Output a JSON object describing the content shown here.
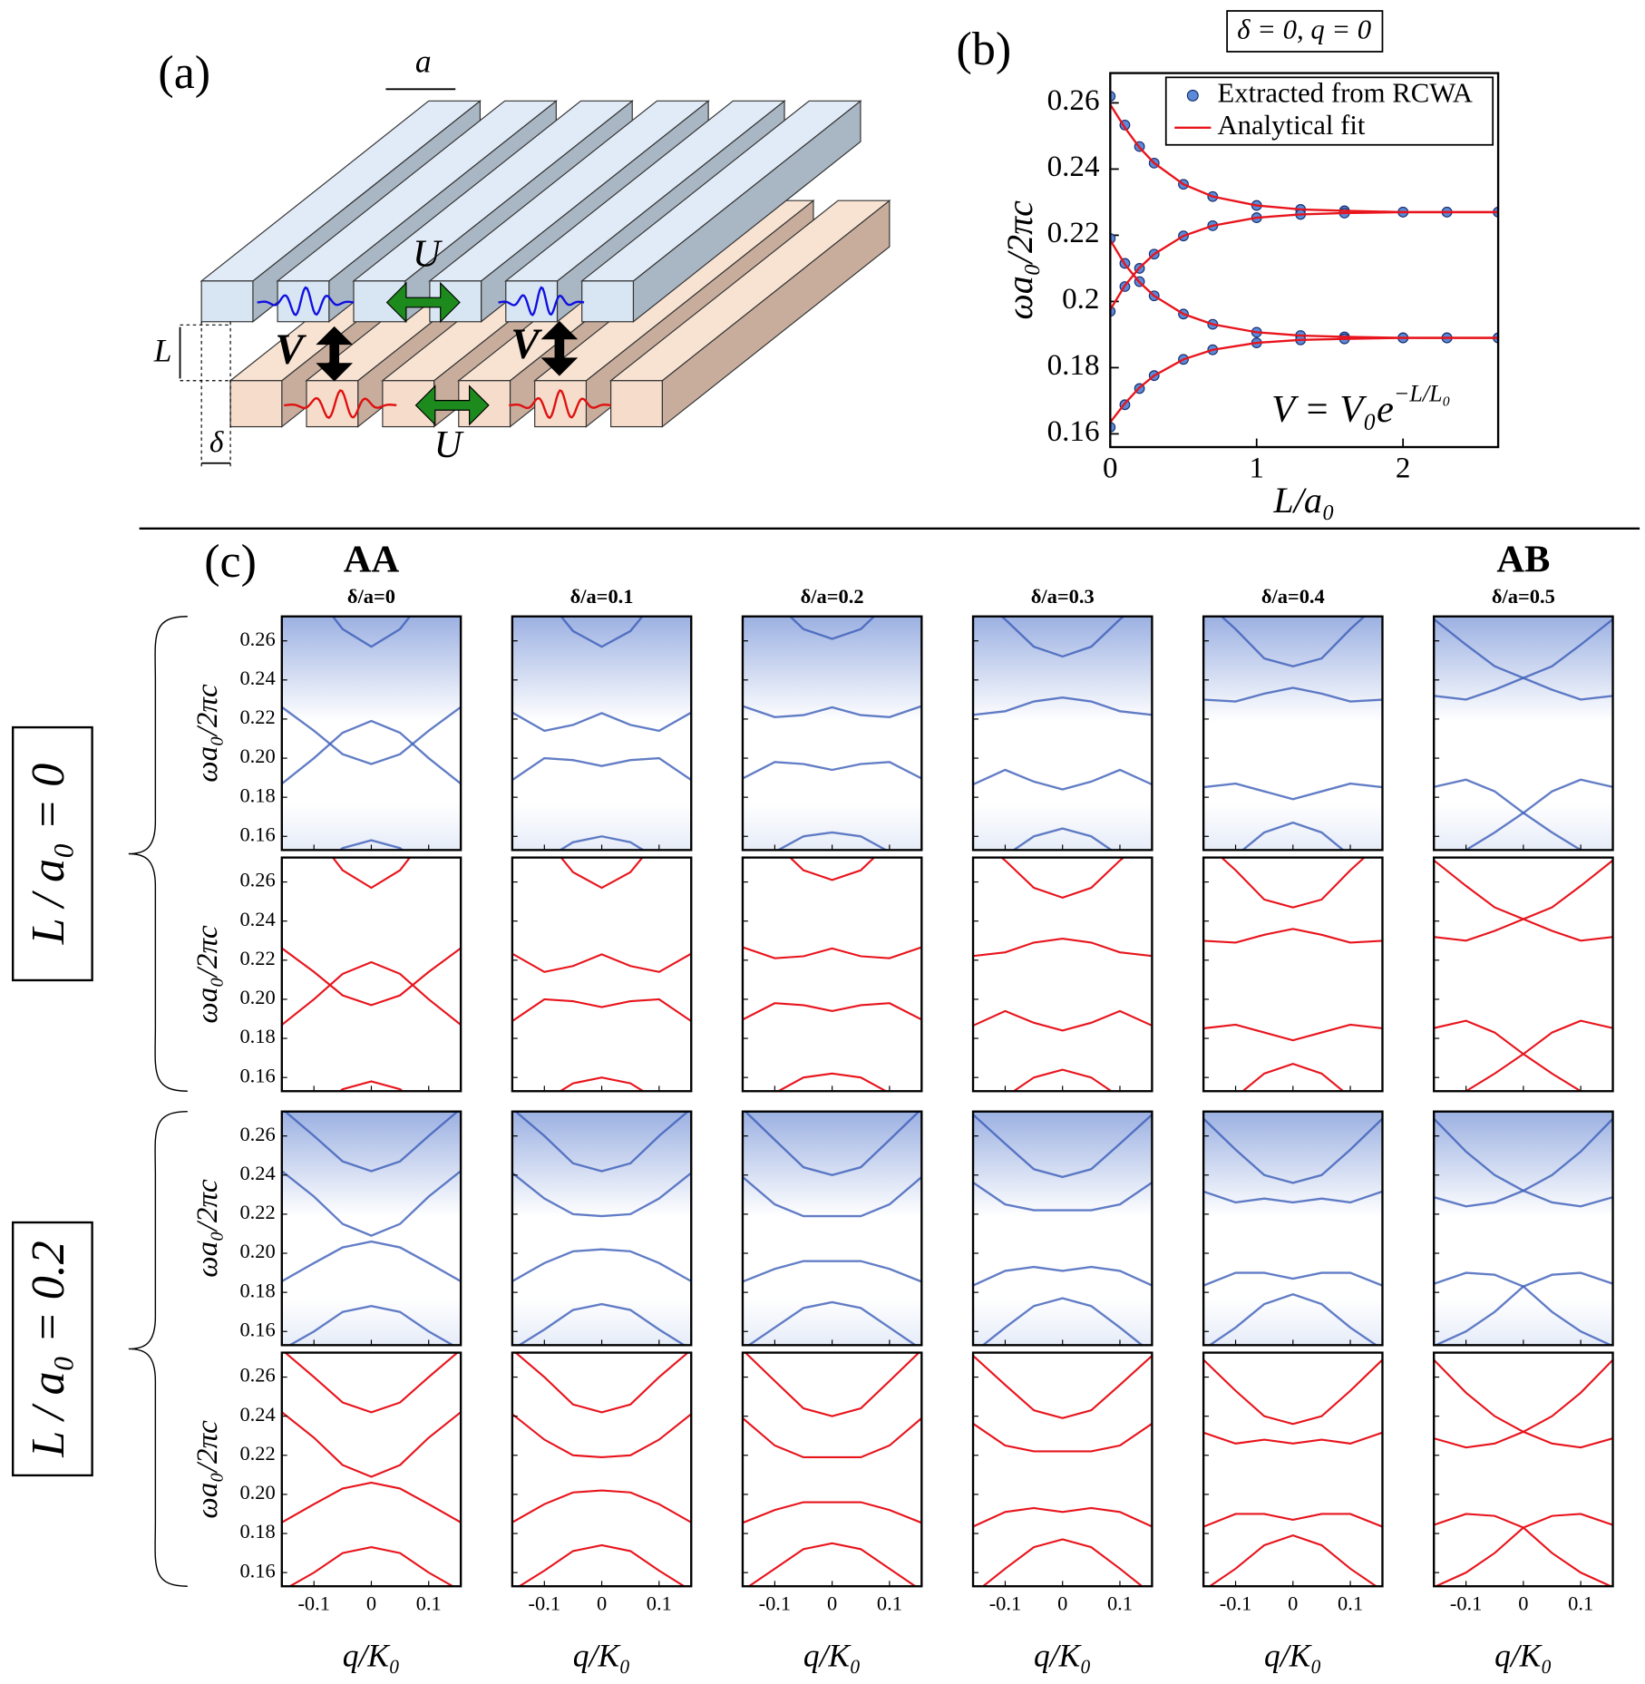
{
  "panel_a": {
    "panel_label": "(a)",
    "period_label": "a",
    "coupling_labels": [
      "U",
      "U",
      "V",
      "V"
    ],
    "separation_label": "L",
    "shift_label": "δ"
  },
  "chart_data": [
    {
      "type": "scatter-line",
      "panel_label": "(b)",
      "subtitle": "δ = 0, q = 0",
      "x_label": "L/a₀",
      "y_label": "ωa₀/2πc",
      "equation": {
        "base": "V = V₀e",
        "exponent": "−L/L₀"
      },
      "xlim": [
        0,
        2.65
      ],
      "ylim": [
        0.156,
        0.269
      ],
      "xticks": [
        0,
        1,
        2
      ],
      "yticks": [
        0.16,
        0.18,
        0.2,
        0.22,
        0.24,
        0.26
      ],
      "legend": "upper right",
      "x": [
        0,
        0.1,
        0.2,
        0.3,
        0.5,
        0.7,
        1.0,
        1.3,
        1.6,
        2.0,
        2.3,
        2.65
      ],
      "series": [
        {
          "name": "Extracted from RCWA",
          "color": "#5b8ad8",
          "marker": "dot",
          "branches": [
            [
              0.262,
              0.2533,
              0.2468,
              0.2418,
              0.2354,
              0.2317,
              0.229,
              0.2278,
              0.2274,
              0.227,
              0.227,
              0.227
            ],
            [
              0.197,
              0.2045,
              0.21,
              0.2143,
              0.2198,
              0.2229,
              0.2253,
              0.2263,
              0.2267,
              0.227,
              0.227,
              0.227
            ],
            [
              0.219,
              0.2115,
              0.206,
              0.2017,
              0.1962,
              0.1931,
              0.1907,
              0.1897,
              0.1893,
              0.189,
              0.189,
              0.189
            ],
            [
              0.162,
              0.1688,
              0.1737,
              0.1776,
              0.1825,
              0.1854,
              0.1875,
              0.1884,
              0.1887,
              0.189,
              0.189,
              0.189
            ]
          ]
        },
        {
          "name": "Analytical fit",
          "color": "#e8141c",
          "branches": [
            [
              0.2595,
              0.2525,
              0.2465,
              0.2418,
              0.2354,
              0.2317,
              0.229,
              0.2278,
              0.2274,
              0.227,
              0.227,
              0.227
            ],
            [
              0.1975,
              0.2048,
              0.2102,
              0.2143,
              0.2198,
              0.2229,
              0.2253,
              0.2263,
              0.2267,
              0.227,
              0.227,
              0.227
            ],
            [
              0.2185,
              0.2112,
              0.2058,
              0.2017,
              0.1962,
              0.1931,
              0.1907,
              0.1897,
              0.1893,
              0.189,
              0.189,
              0.189
            ],
            [
              0.1635,
              0.1692,
              0.174,
              0.1776,
              0.1825,
              0.1854,
              0.1875,
              0.1884,
              0.1887,
              0.189,
              0.189,
              0.189
            ]
          ]
        }
      ]
    },
    {
      "type": "band-grid",
      "panel_label": "(c)",
      "stacking_labels": [
        "AA",
        "AB"
      ],
      "column_titles": [
        "δ/a=0",
        "δ/a=0.1",
        "δ/a=0.2",
        "δ/a=0.3",
        "δ/a=0.4",
        "δ/a=0.5"
      ],
      "x_label": "q/K₀",
      "y_label": "ωa₀/2πc",
      "rcwa_color": "#3b5cb8",
      "fit_color": "#e8141c",
      "xlim": [
        -0.156,
        0.156
      ],
      "ylim": [
        0.153,
        0.2725
      ],
      "xticks": [
        -0.1,
        0,
        0.1
      ],
      "yticks": [
        0.16,
        0.18,
        {
          "value": 0.2,
          "label": "0.20"
        },
        0.22,
        0.24,
        0.26
      ],
      "x": [
        -0.16,
        -0.1,
        -0.05,
        0,
        0.05,
        0.1,
        0.16
      ],
      "rows": [
        {
          "label": "L / a₀ = 0",
          "columns": [
            {
              "bands": [
                [
                  0.3,
                  0.285,
                  0.266,
                  0.257,
                  0.266,
                  0.285,
                  0.3
                ],
                [
                  0.186,
                  0.2,
                  0.213,
                  0.219,
                  0.213,
                  0.2,
                  0.186
                ],
                [
                  0.227,
                  0.214,
                  0.202,
                  0.197,
                  0.202,
                  0.214,
                  0.227
                ],
                [
                  0.13,
                  0.142,
                  0.154,
                  0.158,
                  0.154,
                  0.142,
                  0.13
                ]
              ]
            },
            {
              "bands": [
                [
                  0.3,
                  0.283,
                  0.265,
                  0.257,
                  0.265,
                  0.283,
                  0.3
                ],
                [
                  0.224,
                  0.214,
                  0.217,
                  0.223,
                  0.217,
                  0.214,
                  0.224
                ],
                [
                  0.188,
                  0.2,
                  0.199,
                  0.196,
                  0.199,
                  0.2,
                  0.188
                ],
                [
                  0.135,
                  0.148,
                  0.157,
                  0.16,
                  0.157,
                  0.148,
                  0.135
                ]
              ]
            },
            {
              "bands": [
                [
                  0.295,
                  0.28,
                  0.266,
                  0.261,
                  0.266,
                  0.28,
                  0.295
                ],
                [
                  0.227,
                  0.221,
                  0.222,
                  0.226,
                  0.222,
                  0.221,
                  0.227
                ],
                [
                  0.189,
                  0.198,
                  0.197,
                  0.194,
                  0.197,
                  0.198,
                  0.189
                ],
                [
                  0.14,
                  0.152,
                  0.16,
                  0.162,
                  0.16,
                  0.152,
                  0.14
                ]
              ]
            },
            {
              "bands": [
                [
                  0.285,
                  0.271,
                  0.257,
                  0.252,
                  0.257,
                  0.271,
                  0.285
                ],
                [
                  0.222,
                  0.224,
                  0.229,
                  0.231,
                  0.229,
                  0.224,
                  0.222
                ],
                [
                  0.186,
                  0.194,
                  0.188,
                  0.184,
                  0.188,
                  0.194,
                  0.186
                ],
                [
                  0.14,
                  0.15,
                  0.16,
                  0.164,
                  0.16,
                  0.15,
                  0.14
                ]
              ]
            },
            {
              "bands": [
                [
                  0.282,
                  0.266,
                  0.251,
                  0.247,
                  0.251,
                  0.266,
                  0.282
                ],
                [
                  0.23,
                  0.229,
                  0.233,
                  0.236,
                  0.233,
                  0.229,
                  0.23
                ],
                [
                  0.185,
                  0.187,
                  0.183,
                  0.179,
                  0.183,
                  0.187,
                  0.185
                ],
                [
                  0.14,
                  0.15,
                  0.162,
                  0.167,
                  0.162,
                  0.15,
                  0.14
                ]
              ]
            },
            {
              "bands": [
                [
                  0.272,
                  0.258,
                  0.247,
                  0.241,
                  0.235,
                  0.23,
                  0.232
                ],
                [
                  0.232,
                  0.23,
                  0.235,
                  0.241,
                  0.247,
                  0.258,
                  0.272
                ],
                [
                  0.185,
                  0.189,
                  0.183,
                  0.172,
                  0.162,
                  0.153,
                  0.145
                ],
                [
                  0.145,
                  0.153,
                  0.162,
                  0.172,
                  0.183,
                  0.189,
                  0.185
                ]
              ]
            }
          ]
        },
        {
          "label": "L / a₀ = 0.2",
          "columns": [
            {
              "bands": [
                [
                  0.275,
                  0.26,
                  0.247,
                  0.242,
                  0.247,
                  0.26,
                  0.275
                ],
                [
                  0.243,
                  0.229,
                  0.215,
                  0.209,
                  0.215,
                  0.229,
                  0.243
                ],
                [
                  0.185,
                  0.195,
                  0.203,
                  0.206,
                  0.203,
                  0.195,
                  0.185
                ],
                [
                  0.15,
                  0.16,
                  0.17,
                  0.173,
                  0.17,
                  0.16,
                  0.15
                ]
              ]
            },
            {
              "bands": [
                [
                  0.275,
                  0.26,
                  0.246,
                  0.242,
                  0.246,
                  0.26,
                  0.275
                ],
                [
                  0.242,
                  0.228,
                  0.22,
                  0.219,
                  0.22,
                  0.228,
                  0.242
                ],
                [
                  0.185,
                  0.195,
                  0.201,
                  0.202,
                  0.201,
                  0.195,
                  0.185
                ],
                [
                  0.15,
                  0.161,
                  0.171,
                  0.174,
                  0.171,
                  0.161,
                  0.15
                ]
              ]
            },
            {
              "bands": [
                [
                  0.275,
                  0.258,
                  0.244,
                  0.24,
                  0.244,
                  0.258,
                  0.275
                ],
                [
                  0.24,
                  0.225,
                  0.219,
                  0.219,
                  0.219,
                  0.225,
                  0.24
                ],
                [
                  0.185,
                  0.192,
                  0.196,
                  0.196,
                  0.196,
                  0.192,
                  0.185
                ],
                [
                  0.15,
                  0.162,
                  0.172,
                  0.175,
                  0.172,
                  0.162,
                  0.15
                ]
              ]
            },
            {
              "bands": [
                [
                  0.272,
                  0.256,
                  0.243,
                  0.239,
                  0.243,
                  0.256,
                  0.272
                ],
                [
                  0.237,
                  0.225,
                  0.222,
                  0.222,
                  0.222,
                  0.225,
                  0.237
                ],
                [
                  0.183,
                  0.191,
                  0.193,
                  0.191,
                  0.193,
                  0.191,
                  0.183
                ],
                [
                  0.148,
                  0.162,
                  0.173,
                  0.177,
                  0.173,
                  0.162,
                  0.148
                ]
              ]
            },
            {
              "bands": [
                [
                  0.27,
                  0.253,
                  0.24,
                  0.236,
                  0.24,
                  0.253,
                  0.27
                ],
                [
                  0.232,
                  0.226,
                  0.228,
                  0.226,
                  0.228,
                  0.226,
                  0.232
                ],
                [
                  0.183,
                  0.19,
                  0.19,
                  0.187,
                  0.19,
                  0.19,
                  0.183
                ],
                [
                  0.15,
                  0.162,
                  0.174,
                  0.179,
                  0.174,
                  0.162,
                  0.15
                ]
              ]
            },
            {
              "bands": [
                [
                  0.27,
                  0.252,
                  0.24,
                  0.232,
                  0.226,
                  0.224,
                  0.229
                ],
                [
                  0.229,
                  0.224,
                  0.226,
                  0.232,
                  0.24,
                  0.252,
                  0.27
                ],
                [
                  0.184,
                  0.19,
                  0.189,
                  0.183,
                  0.17,
                  0.16,
                  0.152
                ],
                [
                  0.152,
                  0.16,
                  0.17,
                  0.183,
                  0.189,
                  0.19,
                  0.184
                ]
              ]
            }
          ]
        }
      ]
    }
  ]
}
